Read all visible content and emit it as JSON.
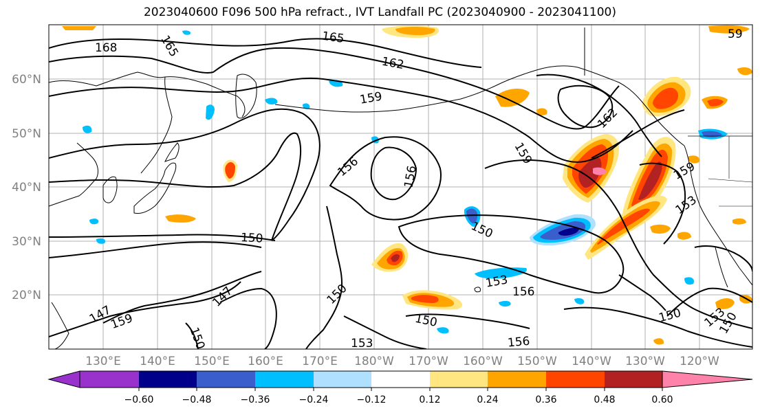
{
  "title": "2023040600 F096 500 hPa refract., IVT Landfall PC (2023040900 - 2023041100)",
  "latitude_labels": [
    "60°N",
    "50°N",
    "40°N",
    "30°N",
    "20°N"
  ],
  "longitude_labels": [
    "130°E",
    "140°E",
    "150°E",
    "160°E",
    "170°E",
    "180°W",
    "170°W",
    "160°W",
    "150°W",
    "140°W",
    "130°W",
    "120°W"
  ],
  "contour_labels": [
    "168",
    "165",
    "165",
    "162",
    "162",
    "159",
    "159",
    "159",
    "156",
    "156",
    "156",
    "156",
    "153",
    "153",
    "153",
    "153",
    "150",
    "150",
    "150",
    "150",
    "150",
    "150",
    "147",
    "147",
    "159",
    "150",
    "59"
  ],
  "colorbar": {
    "ticks": [
      "−0.60",
      "−0.48",
      "−0.36",
      "−0.24",
      "−0.12",
      "0.12",
      "0.24",
      "0.36",
      "0.48",
      "0.60"
    ],
    "colors": [
      "#9932cc",
      "#00008b",
      "#3a5fcd",
      "#00bfff",
      "#b0e0ff",
      "#ffffff",
      "#ffe680",
      "#ffa500",
      "#ff4500",
      "#b22222",
      "#ff82ab"
    ]
  }
}
